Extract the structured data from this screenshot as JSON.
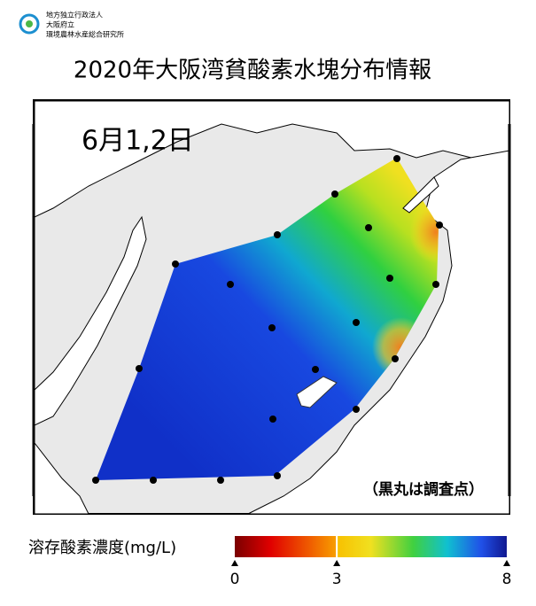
{
  "header": {
    "org": [
      "地方独立行政法人",
      "大阪府立",
      "環境農林水産総合研究所"
    ]
  },
  "title": "2020年大阪湾貧酸素水塊分布情報",
  "map": {
    "date": "6月1,2日",
    "note": "（黒丸は調査点）"
  },
  "colorbar": {
    "label": "溶存酸素濃度(mg/L)",
    "lim": [
      0,
      8
    ],
    "ticks": [
      0,
      3,
      8
    ]
  }
}
